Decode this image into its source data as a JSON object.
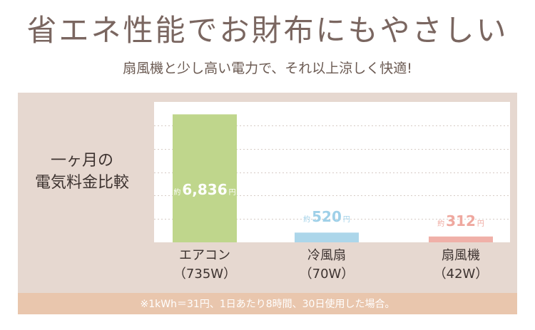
{
  "title": "省エネ性能でお財布にもやさしい",
  "subtitle": "扇風機と少し高い電力で、それ以上涼しく快適!",
  "side_label": [
    "一ヶ月の",
    "電気料金比較"
  ],
  "footnote": "※1kWh＝31円、1日あたり8時間、30日使用した場合。",
  "colors": {
    "panel": "#e6d8d0",
    "footnote_bar": "#e9c6ad",
    "aircon": "#bfd68c",
    "reifusen": "#acd6ea",
    "senpuki": "#f0b0a8"
  },
  "chart_data": {
    "type": "bar",
    "categories": [
      "エアコン\n（735W）",
      "冷風扇\n（70W）",
      "扇風機\n（42W）"
    ],
    "values": [
      6836,
      520,
      312
    ],
    "ylim": [
      0,
      7500
    ],
    "grid": true,
    "bars": [
      {
        "name_line1": "エアコン",
        "name_line2": "（735W）",
        "value": 6836,
        "prefix": "約",
        "value_text": "6,836",
        "unit": "円",
        "color": "#bfd68c",
        "label_color": "#ffffff",
        "label_inside": true
      },
      {
        "name_line1": "冷風扇",
        "name_line2": "（70W）",
        "value": 520,
        "prefix": "約",
        "value_text": "520",
        "unit": "円",
        "color": "#acd6ea",
        "label_color": "#9fd0e8",
        "label_inside": false
      },
      {
        "name_line1": "扇風機",
        "name_line2": "（42W）",
        "value": 312,
        "prefix": "約",
        "value_text": "312",
        "unit": "円",
        "color": "#f0b0a8",
        "label_color": "#efa89f",
        "label_inside": false
      }
    ]
  }
}
